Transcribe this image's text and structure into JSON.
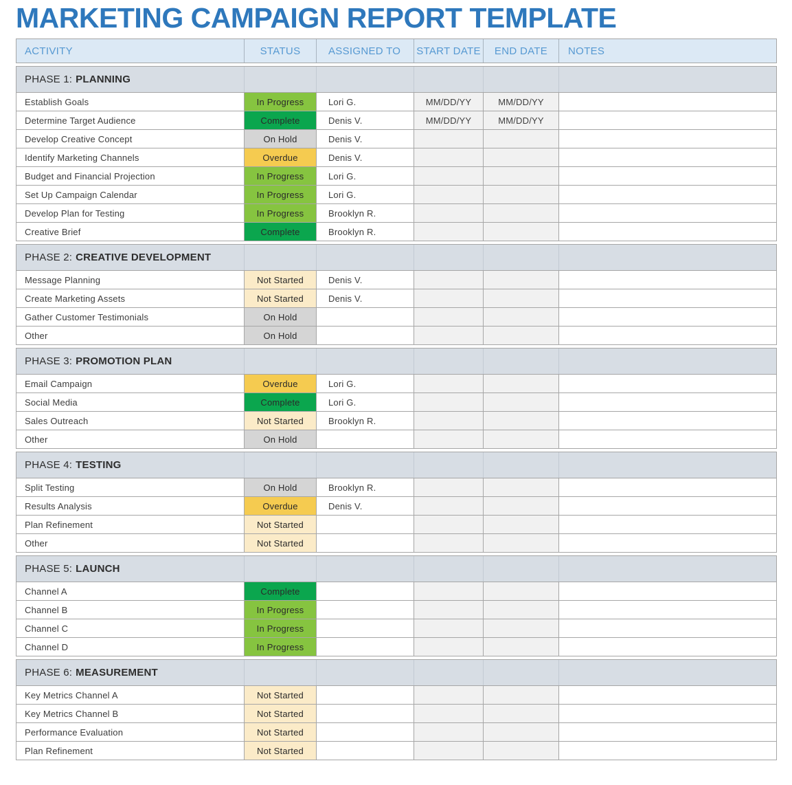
{
  "title": "MARKETING CAMPAIGN REPORT TEMPLATE",
  "columns": [
    "ACTIVITY",
    "STATUS",
    "ASSIGNED TO",
    "START DATE",
    "END DATE",
    "NOTES"
  ],
  "status_colors": {
    "In Progress": "#86C440",
    "Complete": "#0BA64E",
    "On Hold": "#D5D5D5",
    "Overdue": "#F5CB50",
    "Not Started": "#FBEBC8"
  },
  "sections": [
    {
      "phase_label": "PHASE 1:",
      "phase_name": "PLANNING",
      "rows": [
        {
          "activity": "Establish Goals",
          "status": "In Progress",
          "assigned_to": "Lori G.",
          "start_date": "MM/DD/YY",
          "end_date": "MM/DD/YY",
          "notes": ""
        },
        {
          "activity": "Determine Target Audience",
          "status": "Complete",
          "assigned_to": "Denis V.",
          "start_date": "MM/DD/YY",
          "end_date": "MM/DD/YY",
          "notes": ""
        },
        {
          "activity": "Develop Creative Concept",
          "status": "On Hold",
          "assigned_to": "Denis V.",
          "start_date": "",
          "end_date": "",
          "notes": ""
        },
        {
          "activity": "Identify Marketing Channels",
          "status": "Overdue",
          "assigned_to": "Denis V.",
          "start_date": "",
          "end_date": "",
          "notes": ""
        },
        {
          "activity": "Budget and Financial Projection",
          "status": "In Progress",
          "assigned_to": "Lori G.",
          "start_date": "",
          "end_date": "",
          "notes": ""
        },
        {
          "activity": "Set Up Campaign Calendar",
          "status": "In Progress",
          "assigned_to": "Lori G.",
          "start_date": "",
          "end_date": "",
          "notes": ""
        },
        {
          "activity": "Develop Plan for Testing",
          "status": "In Progress",
          "assigned_to": "Brooklyn R.",
          "start_date": "",
          "end_date": "",
          "notes": ""
        },
        {
          "activity": "Creative Brief",
          "status": "Complete",
          "assigned_to": "Brooklyn R.",
          "start_date": "",
          "end_date": "",
          "notes": ""
        }
      ]
    },
    {
      "phase_label": "PHASE 2:",
      "phase_name": "CREATIVE DEVELOPMENT",
      "rows": [
        {
          "activity": "Message Planning",
          "status": "Not Started",
          "assigned_to": "Denis V.",
          "start_date": "",
          "end_date": "",
          "notes": ""
        },
        {
          "activity": "Create Marketing Assets",
          "status": "Not Started",
          "assigned_to": "Denis V.",
          "start_date": "",
          "end_date": "",
          "notes": ""
        },
        {
          "activity": "Gather Customer Testimonials",
          "status": "On Hold",
          "assigned_to": "",
          "start_date": "",
          "end_date": "",
          "notes": ""
        },
        {
          "activity": "Other",
          "status": "On Hold",
          "assigned_to": "",
          "start_date": "",
          "end_date": "",
          "notes": ""
        }
      ]
    },
    {
      "phase_label": "PHASE 3:",
      "phase_name": "PROMOTION PLAN",
      "rows": [
        {
          "activity": "Email Campaign",
          "status": "Overdue",
          "assigned_to": "Lori G.",
          "start_date": "",
          "end_date": "",
          "notes": ""
        },
        {
          "activity": "Social Media",
          "status": "Complete",
          "assigned_to": "Lori G.",
          "start_date": "",
          "end_date": "",
          "notes": ""
        },
        {
          "activity": "Sales Outreach",
          "status": "Not Started",
          "assigned_to": "Brooklyn R.",
          "start_date": "",
          "end_date": "",
          "notes": ""
        },
        {
          "activity": "Other",
          "status": "On Hold",
          "assigned_to": "",
          "start_date": "",
          "end_date": "",
          "notes": ""
        }
      ]
    },
    {
      "phase_label": "PHASE 4:",
      "phase_name": "TESTING",
      "rows": [
        {
          "activity": "Split Testing",
          "status": "On Hold",
          "assigned_to": "Brooklyn R.",
          "start_date": "",
          "end_date": "",
          "notes": ""
        },
        {
          "activity": "Results Analysis",
          "status": "Overdue",
          "assigned_to": "Denis V.",
          "start_date": "",
          "end_date": "",
          "notes": ""
        },
        {
          "activity": "Plan Refinement",
          "status": "Not Started",
          "assigned_to": "",
          "start_date": "",
          "end_date": "",
          "notes": ""
        },
        {
          "activity": "Other",
          "status": "Not Started",
          "assigned_to": "",
          "start_date": "",
          "end_date": "",
          "notes": ""
        }
      ]
    },
    {
      "phase_label": "PHASE 5:",
      "phase_name": "LAUNCH",
      "rows": [
        {
          "activity": "Channel A",
          "status": "Complete",
          "assigned_to": "",
          "start_date": "",
          "end_date": "",
          "notes": ""
        },
        {
          "activity": "Channel B",
          "status": "In Progress",
          "assigned_to": "",
          "start_date": "",
          "end_date": "",
          "notes": ""
        },
        {
          "activity": "Channel C",
          "status": "In Progress",
          "assigned_to": "",
          "start_date": "",
          "end_date": "",
          "notes": ""
        },
        {
          "activity": "Channel D",
          "status": "In Progress",
          "assigned_to": "",
          "start_date": "",
          "end_date": "",
          "notes": ""
        }
      ]
    },
    {
      "phase_label": "PHASE 6:",
      "phase_name": "MEASUREMENT",
      "rows": [
        {
          "activity": "Key Metrics Channel A",
          "status": "Not Started",
          "assigned_to": "",
          "start_date": "",
          "end_date": "",
          "notes": ""
        },
        {
          "activity": "Key Metrics Channel B",
          "status": "Not Started",
          "assigned_to": "",
          "start_date": "",
          "end_date": "",
          "notes": ""
        },
        {
          "activity": "Performance Evaluation",
          "status": "Not Started",
          "assigned_to": "",
          "start_date": "",
          "end_date": "",
          "notes": ""
        },
        {
          "activity": "Plan Refinement",
          "status": "Not Started",
          "assigned_to": "",
          "start_date": "",
          "end_date": "",
          "notes": ""
        }
      ]
    }
  ]
}
